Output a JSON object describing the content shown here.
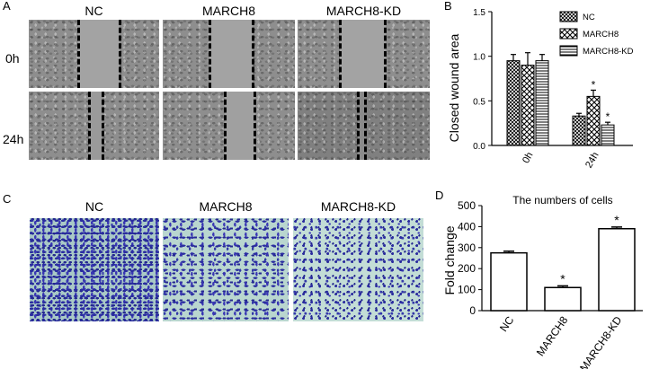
{
  "panels": {
    "a": "A",
    "b": "B",
    "c": "C",
    "d": "D"
  },
  "wound_assay": {
    "columns": [
      "NC",
      "MARCH8",
      "MARCH8-KD"
    ],
    "rows": [
      "0h",
      "24h"
    ]
  },
  "transwell": {
    "columns": [
      "NC",
      "MARCH8",
      "MARCH8-KD"
    ]
  },
  "colors": {
    "bar_fill": "#ffffff",
    "stroke": "#000000",
    "stain": "#2a2ca0"
  },
  "chart_data": [
    {
      "type": "bar",
      "title": "",
      "xlabel": "",
      "ylabel": "Closed wound area",
      "categories": [
        "0h",
        "24h"
      ],
      "ylim": [
        0,
        1.5
      ],
      "yticks": [
        "0.0",
        "0.5",
        "1.0",
        "1.5"
      ],
      "legend_position": "top-right",
      "series": [
        {
          "name": "NC",
          "pattern": "crosshatch",
          "values": [
            0.95,
            0.33
          ],
          "errors": [
            0.07,
            0.03
          ],
          "marks": [
            "",
            ""
          ]
        },
        {
          "name": "MARCH8",
          "pattern": "diamond",
          "values": [
            0.9,
            0.55
          ],
          "errors": [
            0.14,
            0.07
          ],
          "marks": [
            "",
            "*"
          ]
        },
        {
          "name": "MARCH8-KD",
          "pattern": "horizontal-lines",
          "values": [
            0.95,
            0.23
          ],
          "errors": [
            0.07,
            0.03
          ],
          "marks": [
            "",
            "*"
          ]
        }
      ]
    },
    {
      "type": "bar",
      "title": "The numbers of cells",
      "xlabel": "",
      "ylabel": "Fold change",
      "categories": [
        "NC",
        "MARCH8",
        "MARCH8-KD"
      ],
      "ylim": [
        0,
        500
      ],
      "yticks": [
        "0",
        "100",
        "200",
        "300",
        "400",
        "500"
      ],
      "values": [
        275,
        110,
        390
      ],
      "errors": [
        8,
        8,
        8
      ],
      "marks": [
        "",
        "*",
        "*"
      ]
    }
  ]
}
